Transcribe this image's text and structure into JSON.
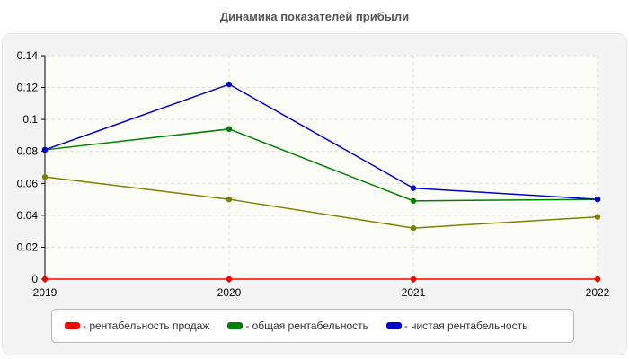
{
  "chart_data": {
    "type": "line",
    "title": "Динамика показателей прибыли",
    "xlabel": "",
    "ylabel": "",
    "categories": [
      "2019",
      "2020",
      "2021",
      "2022"
    ],
    "ylim": [
      0,
      0.14
    ],
    "yticks": [
      "0",
      "0.02",
      "0.04",
      "0.06",
      "0.08",
      "0.1",
      "0.12",
      "0.14"
    ],
    "grid": true,
    "legend_position": "bottom",
    "series": [
      {
        "name": "- рентабельность продаж",
        "color": "#ff0000",
        "values": [
          0,
          0,
          0,
          0
        ]
      },
      {
        "name": "- общая рентабельность",
        "color": "#008000",
        "values": [
          0.081,
          0.094,
          0.049,
          0.05
        ]
      },
      {
        "name": "- чистая рентабельность",
        "color": "#0000cc",
        "values": [
          0.081,
          0.122,
          0.057,
          0.05
        ]
      },
      {
        "name": "",
        "color": "#808000",
        "values": [
          0.064,
          0.05,
          0.032,
          0.039
        ],
        "in_legend": false
      }
    ]
  }
}
